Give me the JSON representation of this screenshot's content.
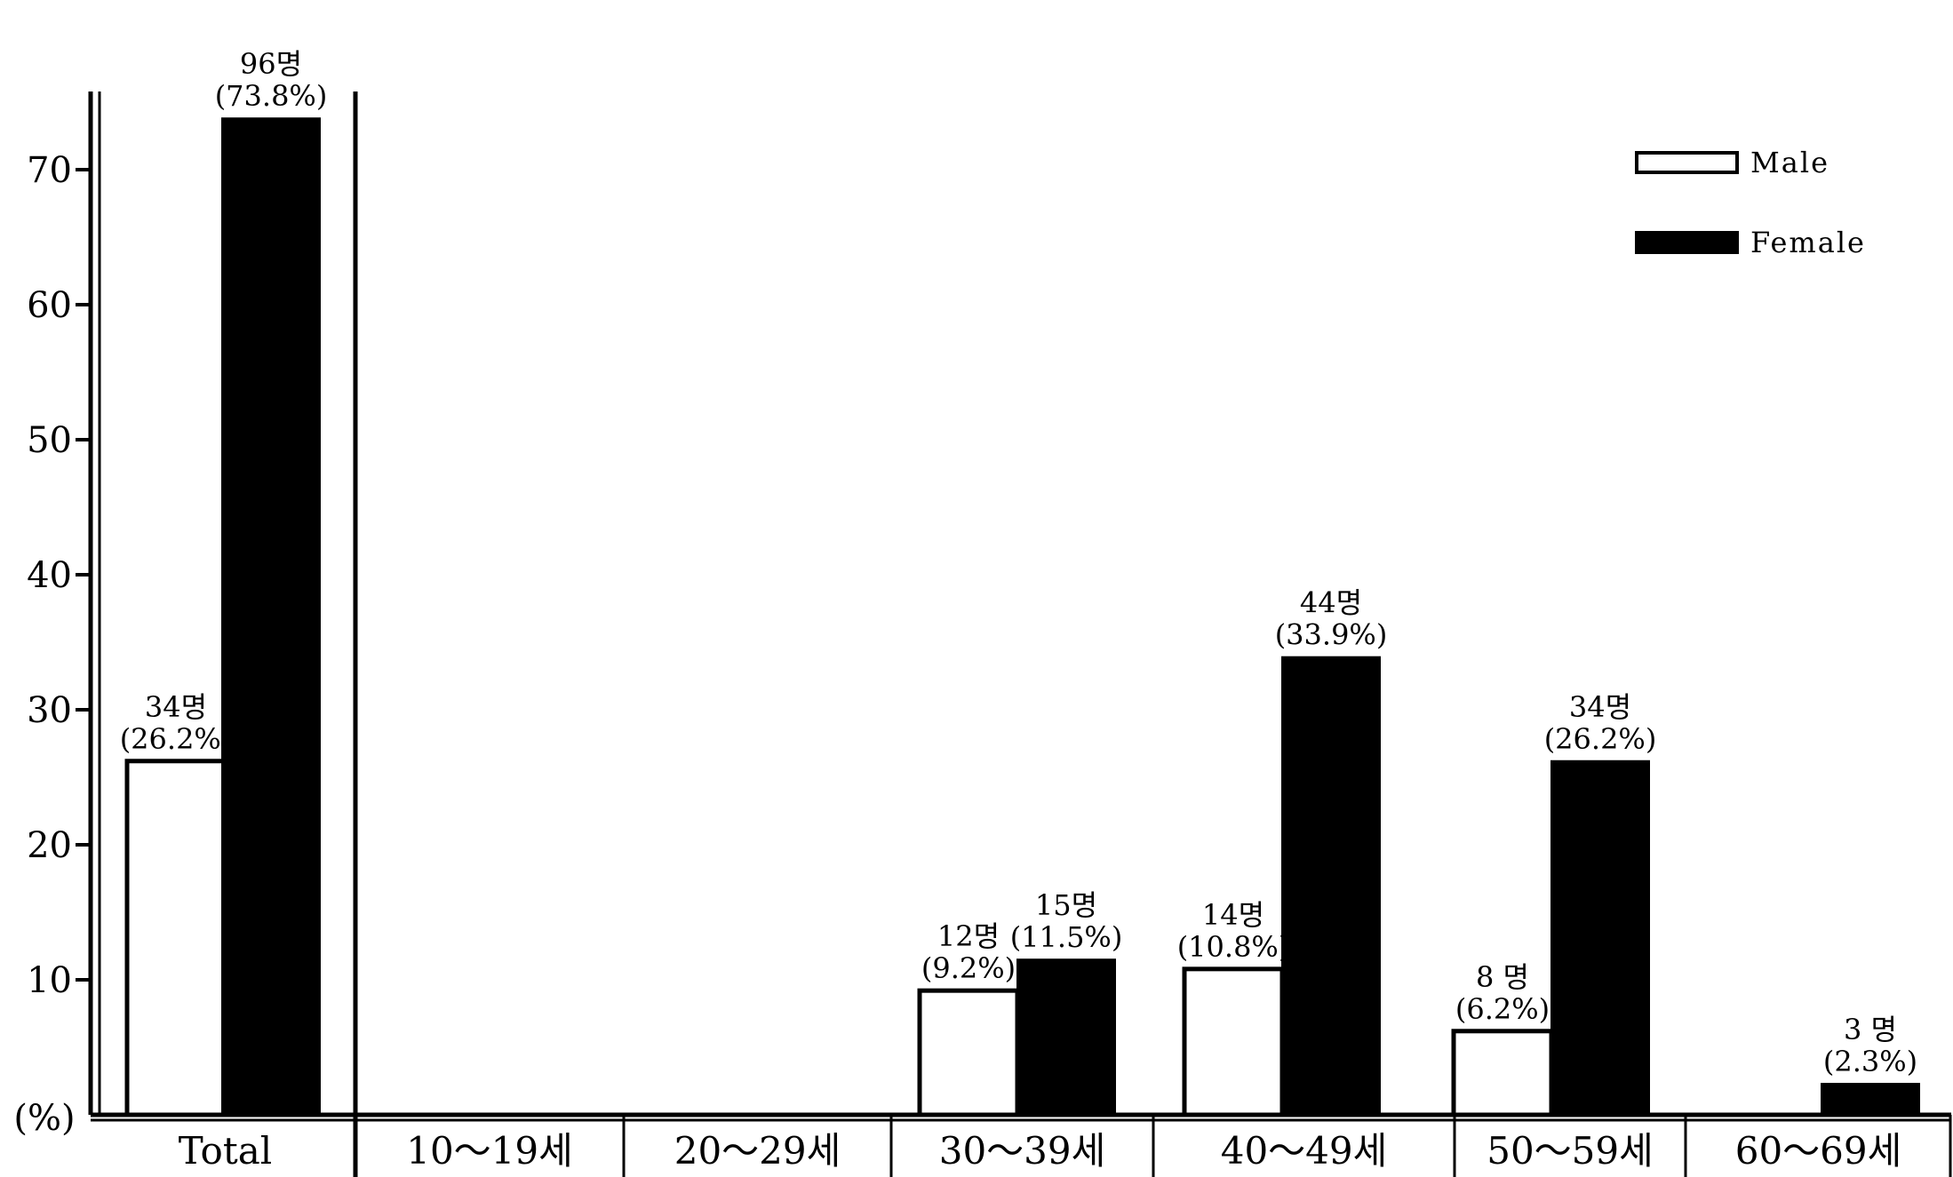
{
  "chart_data": {
    "type": "bar",
    "title": "",
    "xlabel": "",
    "ylabel": "(%)",
    "ylim": [
      0,
      75
    ],
    "yticks": [
      10,
      20,
      30,
      40,
      50,
      60,
      70
    ],
    "grid": false,
    "legend_position": "top-right",
    "categories": [
      "Total",
      "10～19세",
      "20～29세",
      "30～39세",
      "40～49세",
      "50～59세",
      "60～69세"
    ],
    "series": [
      {
        "name": "Male",
        "color": "#ffffff",
        "values": [
          26.2,
          0,
          0,
          9.2,
          10.8,
          6.2,
          0
        ],
        "labels": [
          "34명\n(26.2%)",
          "",
          "",
          "12명\n(9.2%)",
          "14명\n(10.8%)",
          "8 명\n(6.2%)",
          ""
        ]
      },
      {
        "name": "Female",
        "color": "#000000",
        "values": [
          73.8,
          0,
          0,
          11.5,
          33.9,
          26.2,
          2.3
        ],
        "labels": [
          "96명\n(73.8%)",
          "",
          "",
          "15명\n(11.5%)",
          "44명\n(33.9%)",
          "34명\n(26.2%)",
          "3 명\n(2.3%)"
        ]
      }
    ]
  }
}
